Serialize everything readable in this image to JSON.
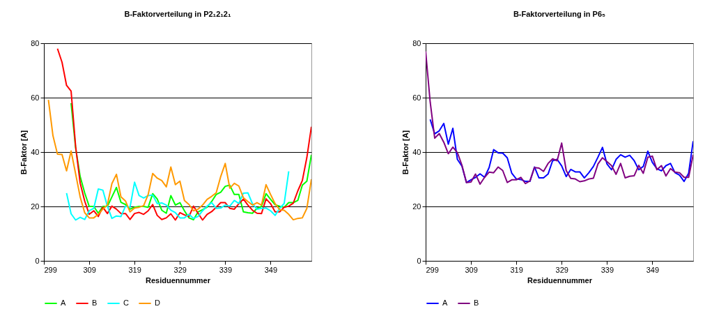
{
  "chart_data": [
    {
      "type": "line",
      "title": "B-Faktorverteilung in P2₁2₁2₁",
      "xlabel": "Residuennummer",
      "ylabel": "B-Faktor [A]",
      "xlim": [
        299,
        358
      ],
      "xticks": [
        299,
        309,
        319,
        329,
        339,
        349
      ],
      "ylim": [
        0,
        80
      ],
      "yticks": [
        0,
        20,
        40,
        60,
        80
      ],
      "grid": "y",
      "legend": "bottom",
      "series": [
        {
          "name": "A",
          "color": "#00ff00",
          "x": [
            305,
            306,
            307,
            308,
            309,
            310,
            311,
            312,
            313,
            314,
            315,
            316,
            317,
            318,
            319,
            320,
            321,
            322,
            323,
            324,
            325,
            326,
            327,
            328,
            329,
            330,
            331,
            332,
            333,
            334,
            335,
            336,
            337,
            338,
            339,
            340,
            341,
            342,
            343,
            344,
            345,
            346,
            347,
            348,
            349,
            350,
            351,
            352,
            353,
            354,
            355,
            356,
            357,
            358
          ],
          "values": [
            58,
            41.5,
            31,
            25,
            20,
            20,
            17.5,
            20,
            20,
            23.5,
            27,
            21.5,
            20.7,
            19,
            19.7,
            20,
            20,
            19.7,
            24.7,
            22.7,
            18.6,
            17.5,
            24,
            20.5,
            21.4,
            18.4,
            15.8,
            15.1,
            18,
            18.8,
            19.7,
            21.8,
            24.4,
            25.2,
            27.4,
            27.8,
            24.4,
            24.4,
            18,
            17.7,
            17.5,
            19.3,
            20,
            24.7,
            22.6,
            20.6,
            20.1,
            19.7,
            21.4,
            21.4,
            22.2,
            27.8,
            29.3,
            39
          ]
        },
        {
          "name": "B",
          "color": "#ff0000",
          "x": [
            302,
            303,
            304,
            305,
            306,
            307,
            308,
            309,
            310,
            311,
            312,
            313,
            314,
            315,
            316,
            317,
            318,
            319,
            320,
            321,
            322,
            323,
            324,
            325,
            326,
            327,
            328,
            329,
            330,
            331,
            332,
            333,
            334,
            335,
            336,
            337,
            338,
            339,
            340,
            341,
            342,
            343,
            344,
            345,
            346,
            347,
            348,
            349,
            350,
            351,
            352,
            353,
            354,
            355,
            356,
            357,
            358
          ],
          "values": [
            78,
            73,
            64.5,
            62.4,
            42,
            28.6,
            22,
            17.1,
            18.4,
            16.3,
            19.7,
            17.4,
            20.1,
            19,
            17.4,
            17.4,
            15.2,
            17.4,
            17.8,
            17.1,
            18.4,
            20.7,
            16.7,
            15.2,
            15.8,
            17.3,
            15,
            17.7,
            16.9,
            16.3,
            20.1,
            17.5,
            15,
            17.1,
            18.1,
            19.7,
            21.4,
            21.4,
            19.3,
            19,
            21,
            22.7,
            20.5,
            18.6,
            17.5,
            17.4,
            22.8,
            21,
            18,
            18,
            19.7,
            20.1,
            21.2,
            25.7,
            29.5,
            38,
            49.3
          ]
        },
        {
          "name": "C",
          "color": "#00ffff",
          "x": [
            304,
            305,
            306,
            307,
            308,
            309,
            310,
            311,
            312,
            313,
            314,
            315,
            316,
            317,
            318,
            319,
            320,
            321,
            322,
            323,
            324,
            325,
            326,
            327,
            328,
            329,
            330,
            331,
            332,
            333,
            334,
            335,
            336,
            337,
            338,
            339,
            340,
            341,
            342,
            343,
            344,
            345,
            346,
            347,
            348,
            349,
            350,
            351,
            352,
            353
          ],
          "values": [
            24.9,
            17.3,
            15,
            16,
            15.2,
            18.4,
            19.3,
            26.4,
            26,
            20.1,
            15.6,
            16.5,
            16.3,
            20.1,
            19.7,
            28.9,
            24,
            23.1,
            24,
            24.2,
            21,
            21.3,
            20.5,
            18.6,
            17.7,
            15.8,
            15.8,
            17.1,
            15.6,
            16.3,
            18.4,
            20.1,
            21.4,
            19.3,
            19.4,
            20.5,
            20.1,
            22.2,
            21.1,
            24.9,
            25,
            21,
            19,
            19.3,
            19.4,
            18.4,
            16.7,
            19.3,
            21.1,
            32.9
          ]
        },
        {
          "name": "D",
          "color": "#ff9900",
          "x": [
            300,
            301,
            302,
            303,
            304,
            305,
            306,
            307,
            308,
            309,
            310,
            311,
            312,
            313,
            314,
            315,
            316,
            317,
            318,
            319,
            320,
            321,
            322,
            323,
            324,
            325,
            326,
            327,
            328,
            329,
            330,
            331,
            332,
            333,
            334,
            335,
            336,
            337,
            338,
            339,
            340,
            341,
            342,
            343,
            344,
            345,
            346,
            347,
            348,
            349,
            350,
            351,
            352,
            353,
            354,
            355,
            356,
            357,
            358
          ],
          "values": [
            59.2,
            46,
            39.2,
            39.1,
            33.1,
            40.4,
            32,
            23.5,
            17.7,
            15.8,
            15.8,
            17.1,
            19,
            20.5,
            28.4,
            31.8,
            23.5,
            22,
            18,
            19.4,
            19.7,
            20.3,
            24.4,
            32.1,
            30.4,
            29.5,
            27.2,
            34.5,
            28,
            29.3,
            22.2,
            20.7,
            18.4,
            19,
            20.5,
            22.6,
            23.7,
            25,
            31,
            35.8,
            26.7,
            28.5,
            27.5,
            23.2,
            21.8,
            20.5,
            21.4,
            20.5,
            28,
            24.4,
            21,
            18.8,
            18.6,
            17.1,
            15.1,
            15.6,
            15.8,
            19.3,
            30
          ]
        }
      ]
    },
    {
      "type": "line",
      "title": "B-Faktorverteilung in P6₅",
      "xlabel": "Residuennummer",
      "ylabel": "B-Faktor [A]",
      "xlim": [
        299,
        358
      ],
      "xticks": [
        299,
        309,
        319,
        329,
        339,
        349
      ],
      "ylim": [
        0,
        80
      ],
      "yticks": [
        0,
        20,
        40,
        60,
        80
      ],
      "grid": "y",
      "legend": "bottom",
      "series": [
        {
          "name": "A",
          "color": "#0000ff",
          "x": [
            300,
            301,
            302,
            303,
            304,
            305,
            306,
            307,
            308,
            309,
            310,
            311,
            312,
            313,
            314,
            315,
            316,
            317,
            318,
            319,
            320,
            321,
            322,
            323,
            324,
            325,
            326,
            327,
            328,
            329,
            330,
            331,
            332,
            333,
            334,
            335,
            336,
            337,
            338,
            339,
            340,
            341,
            342,
            343,
            344,
            345,
            346,
            347,
            348,
            349,
            350,
            351,
            352,
            353,
            354,
            355,
            356,
            357,
            358
          ],
          "values": [
            52,
            46.7,
            47.8,
            50.5,
            42.9,
            48.7,
            37.3,
            34.8,
            28.8,
            29.8,
            30.7,
            32,
            30.7,
            34.3,
            40.9,
            39.7,
            39.6,
            37.9,
            32.2,
            30.1,
            29.9,
            29.2,
            29.2,
            34.5,
            30.5,
            30.5,
            31.9,
            36.8,
            37.3,
            34.9,
            31,
            33.6,
            32.7,
            32.7,
            30.5,
            32.4,
            34.7,
            38.1,
            41.7,
            35.6,
            33.5,
            37.3,
            39,
            38.1,
            38.8,
            36.8,
            33.5,
            34.7,
            40.3,
            36.2,
            33.9,
            33.1,
            35,
            35.8,
            32.4,
            31.5,
            29.2,
            32.2,
            44
          ]
        },
        {
          "name": "B",
          "color": "#800080",
          "x": [
            299,
            300,
            301,
            302,
            303,
            304,
            305,
            306,
            307,
            308,
            309,
            310,
            311,
            312,
            313,
            314,
            315,
            316,
            317,
            318,
            319,
            320,
            321,
            322,
            323,
            324,
            325,
            326,
            327,
            328,
            329,
            330,
            331,
            332,
            333,
            334,
            335,
            336,
            337,
            338,
            339,
            340,
            341,
            342,
            343,
            344,
            345,
            346,
            347,
            348,
            349,
            350,
            351,
            352,
            353,
            354,
            355,
            356,
            357,
            358
          ],
          "values": [
            77,
            58.4,
            45.1,
            46.8,
            43.6,
            39.4,
            41.8,
            39.8,
            35.2,
            28.8,
            29,
            31.9,
            28.2,
            30.7,
            32.6,
            32.4,
            34.5,
            33.2,
            28.8,
            29.8,
            29.8,
            30.7,
            28.4,
            29.4,
            34.3,
            34.1,
            32.9,
            35.8,
            37.5,
            36.8,
            43.3,
            33.2,
            30.3,
            30.1,
            29.1,
            29.4,
            30.1,
            30.4,
            35.6,
            37.9,
            36.5,
            35,
            31.8,
            35.8,
            30.5,
            31.1,
            31.3,
            35.1,
            32.2,
            38.1,
            38.5,
            33.5,
            35,
            31.2,
            33.9,
            32.6,
            32.4,
            30.7,
            30.7,
            39
          ]
        }
      ]
    }
  ]
}
